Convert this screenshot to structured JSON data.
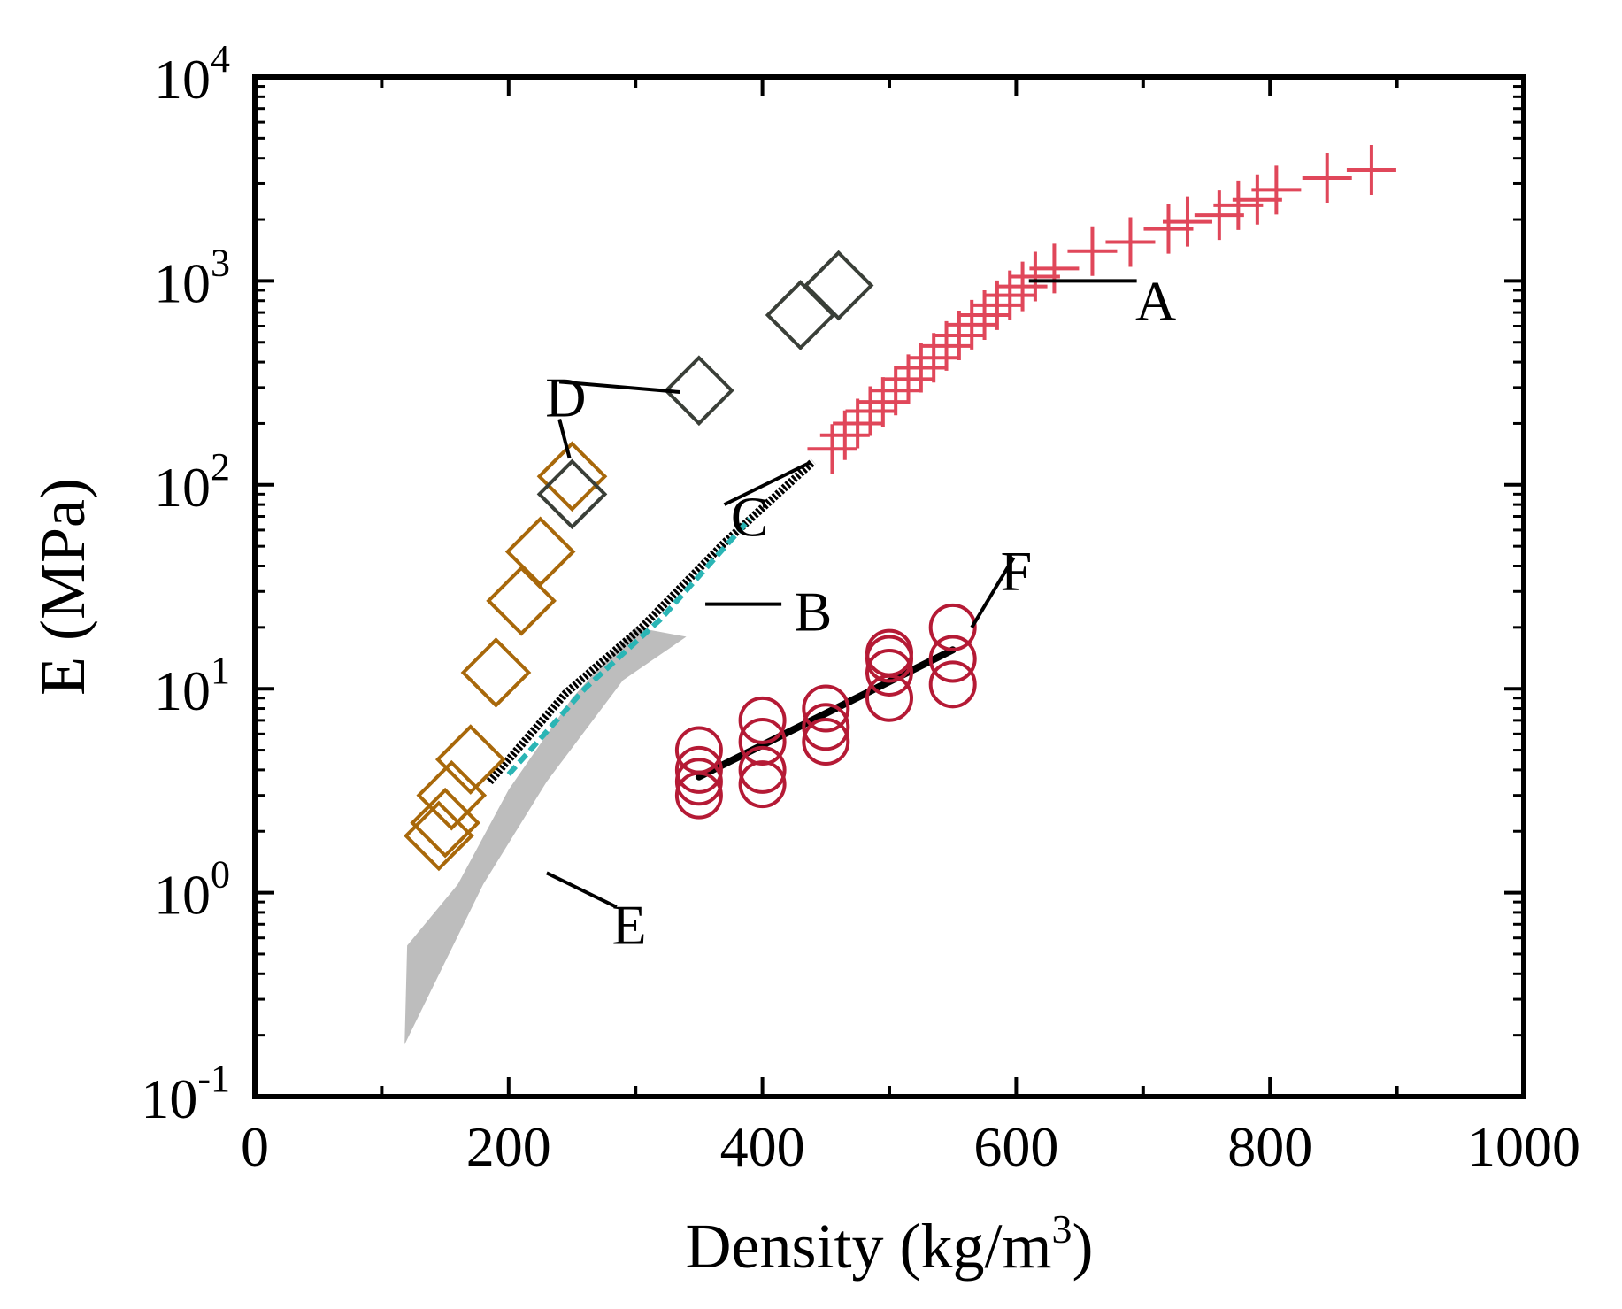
{
  "chart_data": {
    "type": "scatter",
    "xlabel": "Density (kg/m",
    "xlabel_sup": "3",
    "xlabel_end": ")",
    "ylabel": "E (MPa)",
    "xlim": [
      0,
      1000
    ],
    "ylim_log10": [
      -1,
      4
    ],
    "yscale": "log",
    "x_ticks": [
      {
        "value": 0,
        "label": "0"
      },
      {
        "value": 200,
        "label": "200"
      },
      {
        "value": 400,
        "label": "400"
      },
      {
        "value": 600,
        "label": "600"
      },
      {
        "value": 800,
        "label": "800"
      },
      {
        "value": 1000,
        "label": "1000"
      }
    ],
    "y_ticks": [
      {
        "exp": -1,
        "base": "10",
        "sup": "-1"
      },
      {
        "exp": 0,
        "base": "10",
        "sup": "0"
      },
      {
        "exp": 1,
        "base": "10",
        "sup": "1"
      },
      {
        "exp": 2,
        "base": "10",
        "sup": "2"
      },
      {
        "exp": 3,
        "base": "10",
        "sup": "3"
      },
      {
        "exp": 4,
        "base": "10",
        "sup": "4"
      }
    ],
    "colors": {
      "A": "#e0475a",
      "D_small": "#a8680a",
      "D_large": "#3a3f38",
      "E": "#bdbdbd",
      "F_markers": "#b51a35",
      "line": "#000000",
      "B": "#2ab5b5"
    },
    "series": [
      {
        "name": "A",
        "marker": "plus",
        "points": [
          [
            455,
            150
          ],
          [
            465,
            175
          ],
          [
            475,
            200
          ],
          [
            485,
            230
          ],
          [
            495,
            255
          ],
          [
            505,
            290
          ],
          [
            515,
            330
          ],
          [
            525,
            375
          ],
          [
            535,
            420
          ],
          [
            545,
            480
          ],
          [
            555,
            540
          ],
          [
            565,
            610
          ],
          [
            575,
            680
          ],
          [
            585,
            760
          ],
          [
            595,
            850
          ],
          [
            605,
            940
          ],
          [
            615,
            1050
          ],
          [
            630,
            1150
          ],
          [
            660,
            1400
          ],
          [
            690,
            1550
          ],
          [
            720,
            1800
          ],
          [
            735,
            1950
          ],
          [
            760,
            2100
          ],
          [
            775,
            2350
          ],
          [
            790,
            2500
          ],
          [
            805,
            2800
          ],
          [
            845,
            3200
          ],
          [
            880,
            3500
          ]
        ]
      },
      {
        "name": "D_small",
        "marker": "diamond",
        "points": [
          [
            145,
            1.9
          ],
          [
            150,
            2.2
          ],
          [
            155,
            3.0
          ],
          [
            170,
            4.5
          ],
          [
            190,
            12
          ],
          [
            210,
            27
          ],
          [
            225,
            47
          ],
          [
            250,
            110
          ]
        ]
      },
      {
        "name": "D_large",
        "marker": "diamond",
        "points": [
          [
            250,
            90
          ],
          [
            350,
            290
          ],
          [
            430,
            680
          ],
          [
            460,
            950
          ]
        ]
      },
      {
        "name": "F",
        "marker": "circle",
        "points": [
          [
            350,
            3.0
          ],
          [
            350,
            3.5
          ],
          [
            350,
            4.0
          ],
          [
            350,
            5.0
          ],
          [
            400,
            3.4
          ],
          [
            400,
            4.0
          ],
          [
            400,
            5.5
          ],
          [
            400,
            7.0
          ],
          [
            450,
            5.5
          ],
          [
            450,
            6.5
          ],
          [
            450,
            8.0
          ],
          [
            500,
            9.0
          ],
          [
            500,
            12
          ],
          [
            500,
            14
          ],
          [
            500,
            15
          ],
          [
            550,
            10.5
          ],
          [
            550,
            14
          ],
          [
            550,
            20
          ]
        ]
      },
      {
        "name": "E",
        "type": "area",
        "polygon": [
          [
            118,
            0.18
          ],
          [
            180,
            1.1
          ],
          [
            230,
            3.5
          ],
          [
            290,
            11
          ],
          [
            340,
            18
          ],
          [
            300,
            20
          ],
          [
            250,
            9
          ],
          [
            200,
            3.2
          ],
          [
            160,
            1.1
          ],
          [
            120,
            0.55
          ]
        ]
      }
    ],
    "lines": [
      {
        "name": "C",
        "points": [
          [
            185,
            3.5
          ],
          [
            245,
            9.5
          ],
          [
            305,
            20
          ],
          [
            370,
            52
          ],
          [
            440,
            130
          ]
        ],
        "style": "dotted-thick"
      },
      {
        "name": "B",
        "points": [
          [
            200,
            3.8
          ],
          [
            260,
            10
          ],
          [
            320,
            22
          ],
          [
            390,
            68
          ]
        ],
        "style": "dashed"
      },
      {
        "name": "F",
        "points": [
          [
            350,
            3.7
          ],
          [
            550,
            15.5
          ]
        ],
        "style": "solid"
      }
    ],
    "annotations": [
      {
        "text": "A",
        "x": 710,
        "y": 800,
        "leader": [
          [
            610,
            1000
          ],
          [
            695,
            1000
          ]
        ]
      },
      {
        "text": "B",
        "x": 440,
        "y": 24,
        "leader": [
          [
            355,
            26
          ],
          [
            415,
            26
          ]
        ]
      },
      {
        "text": "C",
        "x": 390,
        "y": 70,
        "leader": [
          [
            437,
            128
          ],
          [
            370,
            80
          ]
        ]
      },
      {
        "text": "D",
        "x": 245,
        "y": 270,
        "leader": [
          [
            240,
            320
          ],
          [
            335,
            285
          ]
        ]
      },
      {
        "text": "D",
        "x": 245,
        "y": 270,
        "leader": [
          [
            240,
            210
          ],
          [
            248,
            135
          ]
        ]
      },
      {
        "text": "E",
        "x": 295,
        "y": 0.7,
        "leader": [
          [
            230,
            1.25
          ],
          [
            285,
            0.85
          ]
        ]
      },
      {
        "text": "F",
        "x": 600,
        "y": 38,
        "leader": [
          [
            598,
            44
          ],
          [
            565,
            20
          ]
        ]
      }
    ]
  }
}
